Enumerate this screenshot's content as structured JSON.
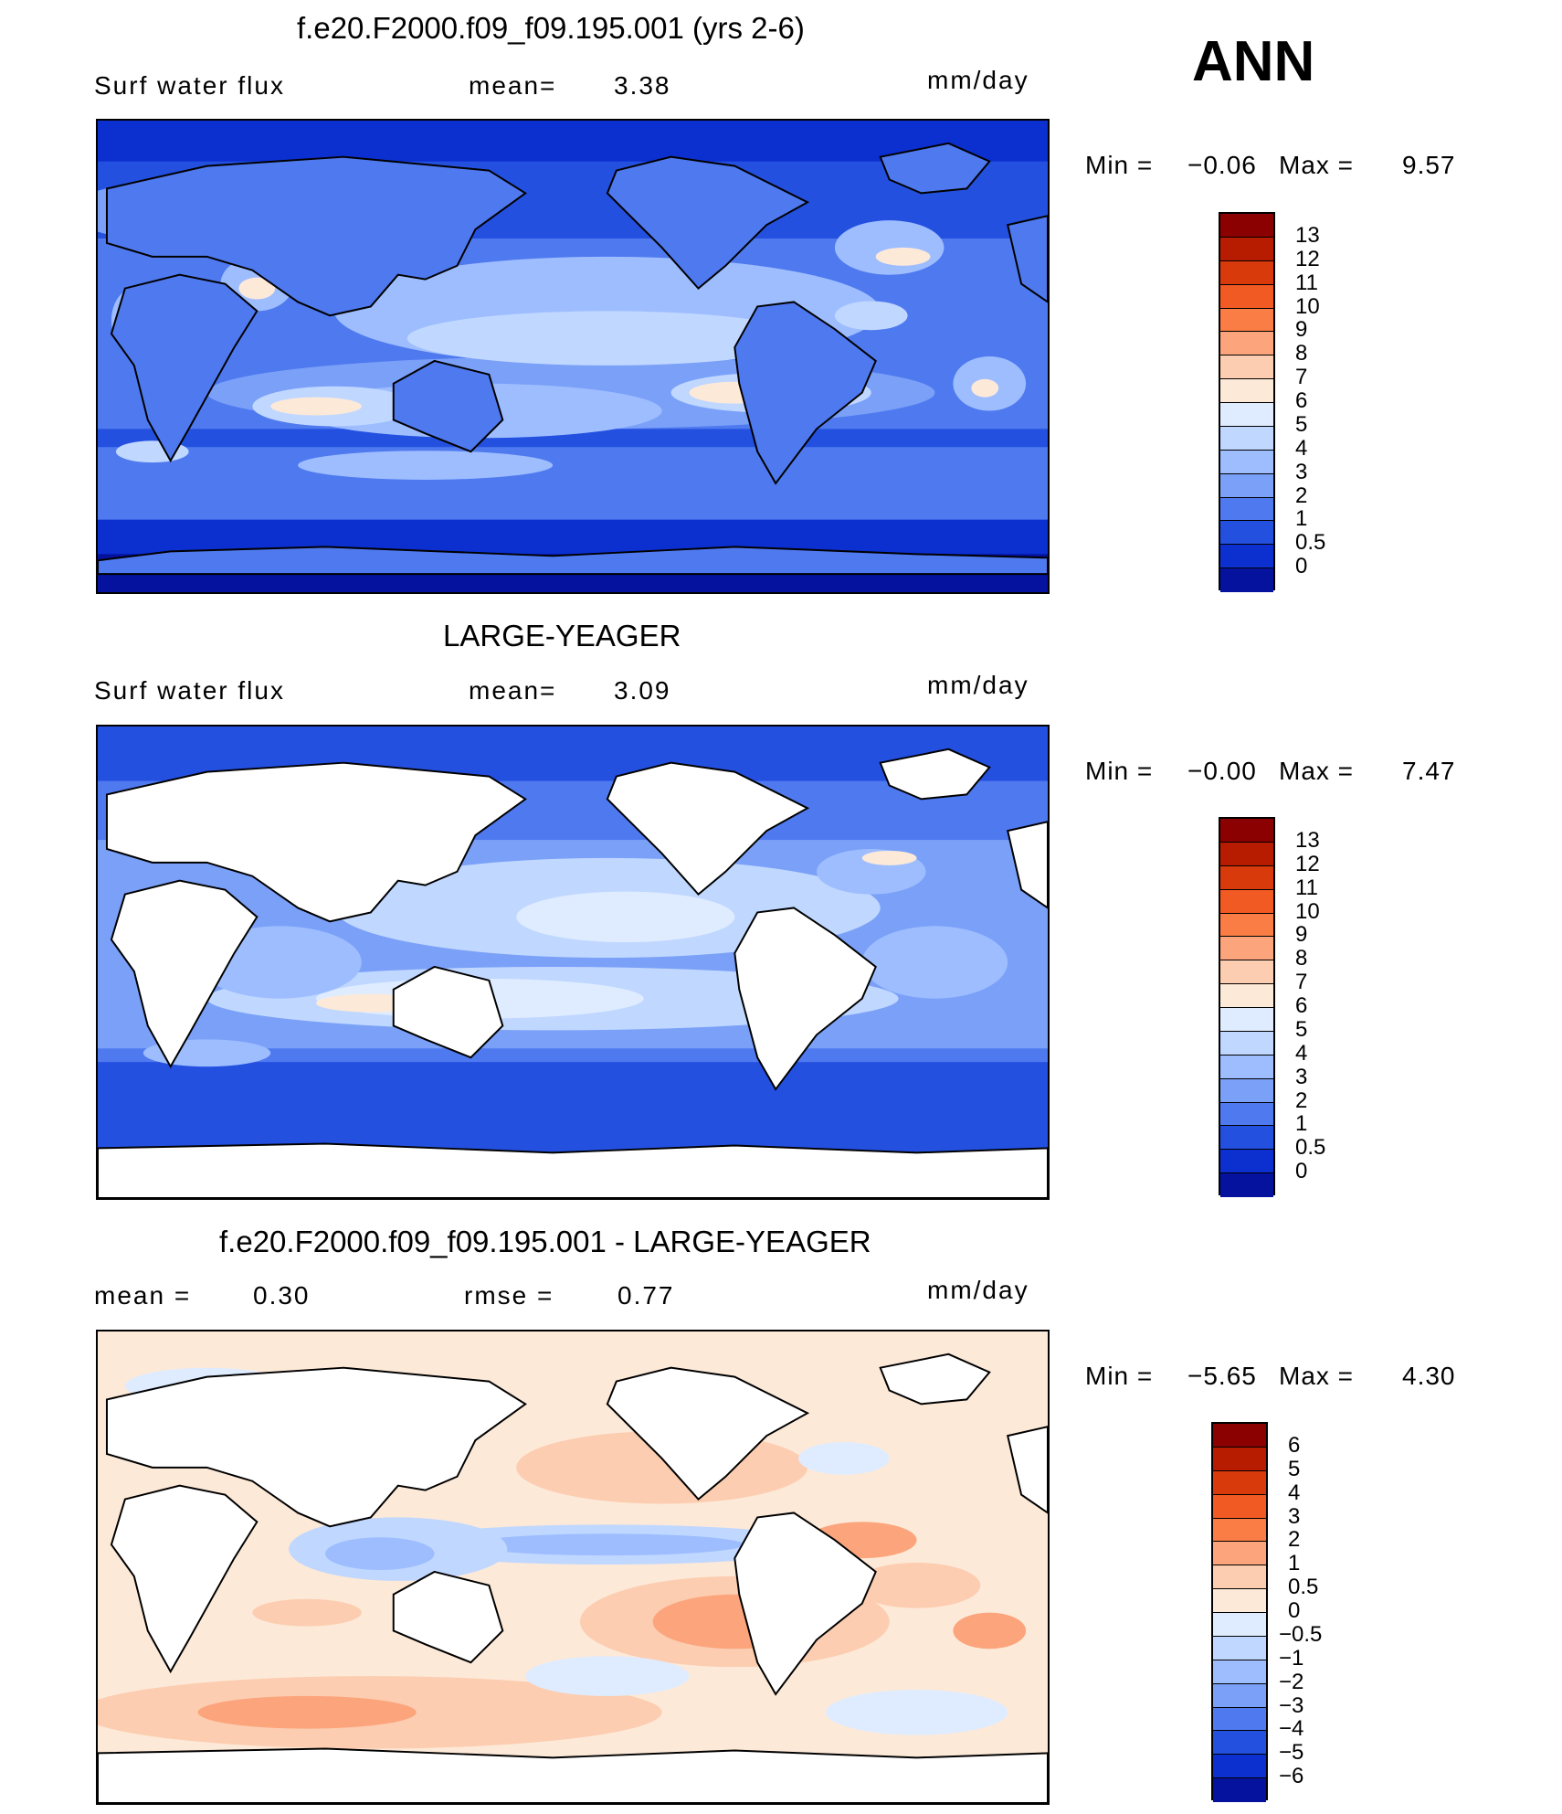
{
  "header": {
    "season": "ANN"
  },
  "panels": [
    {
      "title": "f.e20.F2000.f09_f09.195.001 (yrs 2-6)",
      "left_label": "Surf water flux",
      "mid_label": "mean=",
      "mid_value": "3.38",
      "units": "mm/day",
      "min_label": "Min =",
      "min_value": "−0.06",
      "max_label": "Max =",
      "max_value": "9.57",
      "land": "filled",
      "colorbar": {
        "levels": [
          "13",
          "12",
          "11",
          "10",
          "9",
          "8",
          "7",
          "6",
          "5",
          "4",
          "3",
          "2",
          "1",
          "0.5",
          "0"
        ],
        "colors": [
          "#8b0000",
          "#b81c00",
          "#d93a0c",
          "#f25a23",
          "#fa7d45",
          "#fca47c",
          "#fccdb0",
          "#fde9d8",
          "#dfecff",
          "#c0d7ff",
          "#9dbdff",
          "#7aa0f8",
          "#4f79ef",
          "#2450e0",
          "#0c2fcf",
          "#04129e"
        ]
      }
    },
    {
      "title": "LARGE-YEAGER",
      "left_label": "Surf water flux",
      "mid_label": "mean=",
      "mid_value": "3.09",
      "units": "mm/day",
      "min_label": "Min =",
      "min_value": "−0.00",
      "max_label": "Max =",
      "max_value": "7.47",
      "land": "white",
      "colorbar": {
        "levels": [
          "13",
          "12",
          "11",
          "10",
          "9",
          "8",
          "7",
          "6",
          "5",
          "4",
          "3",
          "2",
          "1",
          "0.5",
          "0"
        ],
        "colors": [
          "#8b0000",
          "#b81c00",
          "#d93a0c",
          "#f25a23",
          "#fa7d45",
          "#fca47c",
          "#fccdb0",
          "#fde9d8",
          "#dfecff",
          "#c0d7ff",
          "#9dbdff",
          "#7aa0f8",
          "#4f79ef",
          "#2450e0",
          "#0c2fcf",
          "#04129e"
        ]
      }
    },
    {
      "title": "f.e20.F2000.f09_f09.195.001 - LARGE-YEAGER",
      "left_label": "mean =",
      "left_value": "0.30",
      "mid_label": "rmse =",
      "mid_value": "0.77",
      "units": "mm/day",
      "min_label": "Min =",
      "min_value": "−5.65",
      "max_label": "Max =",
      "max_value": "4.30",
      "land": "white",
      "colorbar": {
        "levels": [
          "6",
          "5",
          "4",
          "3",
          "2",
          "1",
          "0.5",
          "0",
          "−0.5",
          "−1",
          "−2",
          "−3",
          "−4",
          "−5",
          "−6"
        ],
        "colors": [
          "#8b0000",
          "#b81c00",
          "#d93a0c",
          "#f25a23",
          "#fa7d45",
          "#fca47c",
          "#fccdb0",
          "#fde9d8",
          "#dfecff",
          "#c0d7ff",
          "#9dbdff",
          "#7aa0f8",
          "#4f79ef",
          "#2450e0",
          "#0c2fcf",
          "#04129e"
        ]
      }
    }
  ]
}
